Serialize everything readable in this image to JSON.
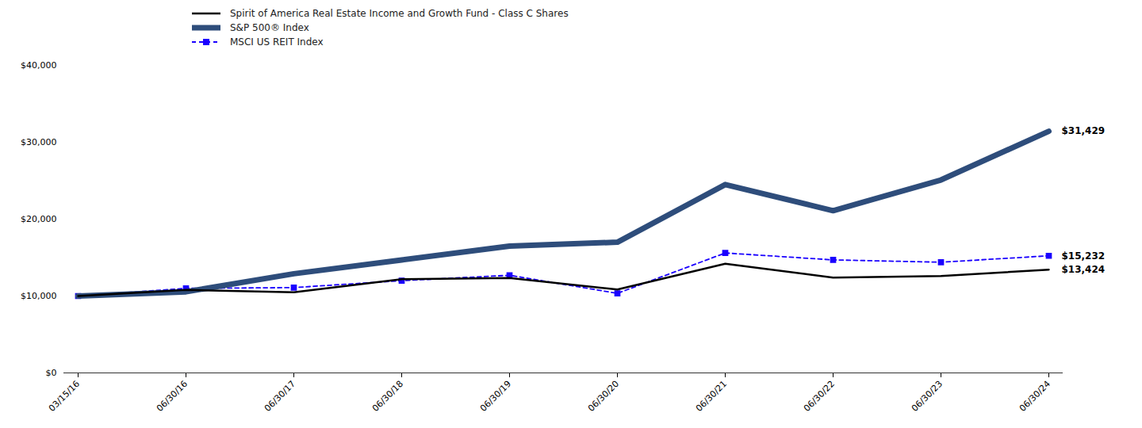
{
  "chart_data": {
    "type": "line",
    "categories": [
      "03/15/16",
      "06/30/16",
      "06/30/17",
      "06/30/18",
      "06/30/19",
      "06/30/20",
      "06/30/21",
      "06/30/22",
      "06/30/23",
      "06/30/24"
    ],
    "series": [
      {
        "name": "Spirit of America Real Estate Income and Growth Fund - Class C Shares",
        "color": "#000000",
        "line_style": "solid",
        "values": [
          10000,
          10800,
          10500,
          12200,
          12350,
          10850,
          14200,
          12400,
          12600,
          13424
        ]
      },
      {
        "name": "S&P 500® Index",
        "color": "#2e4d7b",
        "line_style": "solid",
        "values": [
          10000,
          10550,
          12900,
          14700,
          16500,
          17000,
          24500,
          21100,
          25100,
          31429
        ]
      },
      {
        "name": "MSCI US REIT Index",
        "color": "#1a00ff",
        "line_style": "dashed",
        "marker": "square",
        "values": [
          10000,
          11000,
          11100,
          12000,
          12700,
          10350,
          15600,
          14700,
          14400,
          15232
        ]
      }
    ],
    "annotations": [
      {
        "text": "$31,429",
        "x": "06/30/24",
        "y": 31429
      },
      {
        "text": "$15,232",
        "x": "06/30/24",
        "y": 15232
      },
      {
        "text": "$13,424",
        "x": "06/30/24",
        "y": 13424
      }
    ],
    "ylim": [
      0,
      40000
    ],
    "yticks": [
      {
        "value": 0,
        "label": "$0"
      },
      {
        "value": 10000,
        "label": "$10,000"
      },
      {
        "value": 20000,
        "label": "$20,000"
      },
      {
        "value": 30000,
        "label": "$30,000"
      },
      {
        "value": 40000,
        "label": "$40,000"
      }
    ],
    "grid": false,
    "legend": "upper left"
  }
}
